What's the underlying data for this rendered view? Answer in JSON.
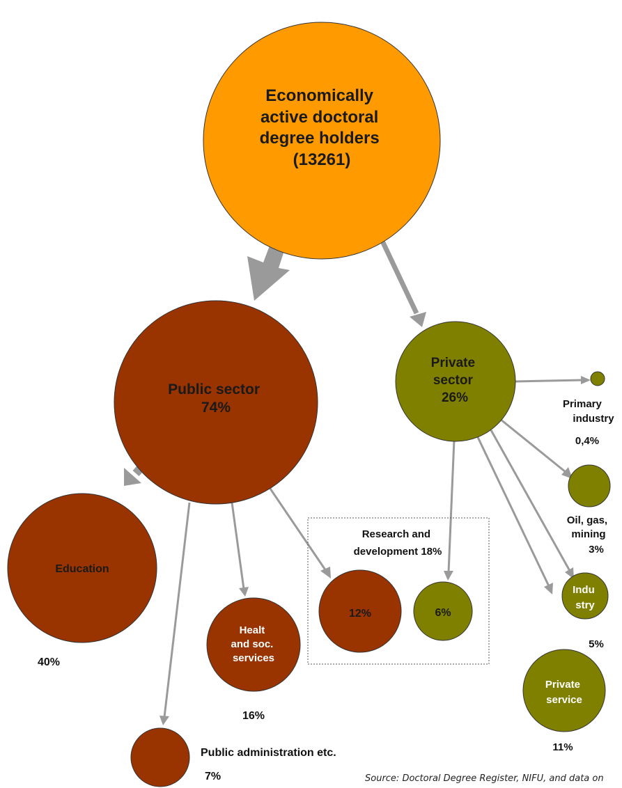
{
  "root": {
    "lines": [
      "Economically",
      "active doctoral",
      "degree holders",
      "(13261)"
    ]
  },
  "public_sector": {
    "lines": [
      "Public sector",
      "74%"
    ]
  },
  "private_sector": {
    "lines": [
      "Private",
      "sector",
      "26%"
    ]
  },
  "education": {
    "label": "Education",
    "pct": "40%"
  },
  "health": {
    "lines": [
      "Healt",
      "and soc.",
      "services"
    ],
    "pct": "16%"
  },
  "public_admin": {
    "label": "Public administration etc.",
    "pct": "7%"
  },
  "research": {
    "lines": [
      "Research and",
      "development 18%"
    ],
    "public_pct": "12%",
    "private_pct": "6%"
  },
  "primary_industry": {
    "lines": [
      "Primary",
      "industry"
    ],
    "pct": "0,4%"
  },
  "oil_gas": {
    "lines": [
      "Oil, gas,",
      "mining"
    ],
    "pct": "3%"
  },
  "industry": {
    "lines": [
      "Indu",
      "stry"
    ],
    "pct": "5%"
  },
  "private_service": {
    "lines": [
      "Private",
      "service"
    ],
    "pct": "11%"
  },
  "source": "Source: Doctoral Degree Register, NIFU, and data on",
  "colors": {
    "root": "#ff9a00",
    "public": "#993300",
    "private": "#808000",
    "arrow": "#9a9a9a"
  }
}
